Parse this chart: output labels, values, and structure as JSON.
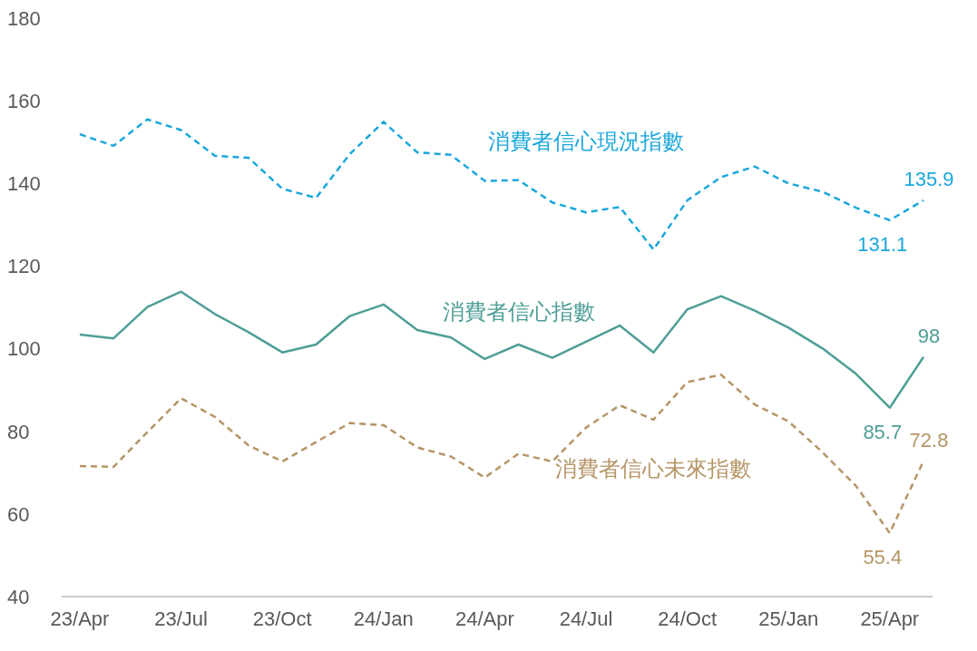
{
  "chart_data": {
    "type": "line",
    "categories": [
      "23/Apr",
      null,
      null,
      "23/Jul",
      null,
      null,
      "23/Oct",
      null,
      null,
      "24/Jan",
      null,
      null,
      "24/Apr",
      null,
      null,
      "24/Jul",
      null,
      null,
      "24/Oct",
      null,
      null,
      "25/Jan",
      null,
      null,
      "25/Apr",
      null
    ],
    "ylim": [
      40,
      180
    ],
    "yticks": [
      40,
      60,
      80,
      100,
      120,
      140,
      160,
      180
    ],
    "series": [
      {
        "name": "消費者信心現況指數",
        "color": "#1aa7dc",
        "line_style": "dashed",
        "values": [
          151.9,
          149.1,
          155.5,
          152.9,
          146.7,
          146.2,
          138.7,
          136.5,
          147.1,
          154.9,
          147.5,
          146.9,
          140.6,
          140.8,
          135.4,
          133.0,
          134.3,
          124.0,
          135.9,
          141.5,
          144.1,
          140.0,
          138.0,
          134.1,
          131.1,
          135.9
        ],
        "value_labels": [
          null,
          null,
          null,
          null,
          null,
          null,
          null,
          null,
          null,
          null,
          null,
          null,
          null,
          null,
          null,
          null,
          null,
          null,
          null,
          null,
          null,
          null,
          null,
          null,
          "131.1",
          "135.9"
        ]
      },
      {
        "name": "消費者信心指數",
        "color": "#4e9e97",
        "line_style": "solid",
        "values": [
          103.4,
          102.5,
          110.1,
          113.8,
          108.4,
          104.0,
          99.1,
          101.0,
          107.9,
          110.7,
          104.5,
          102.7,
          97.5,
          101.0,
          97.8,
          101.7,
          105.6,
          99.1,
          109.5,
          112.7,
          109.2,
          105.1,
          100.1,
          93.9,
          85.7,
          98
        ],
        "value_labels": [
          null,
          null,
          null,
          null,
          null,
          null,
          null,
          null,
          null,
          null,
          null,
          null,
          null,
          null,
          null,
          null,
          null,
          null,
          null,
          null,
          null,
          null,
          null,
          null,
          "85.7",
          "98"
        ]
      },
      {
        "name": "消費者信心未來指數",
        "color": "#b59566",
        "line_style": "dashed",
        "values": [
          71.6,
          71.4,
          79.8,
          88.0,
          83.5,
          76.6,
          72.7,
          77.4,
          82.0,
          81.5,
          76.1,
          73.9,
          68.8,
          74.6,
          72.7,
          80.9,
          86.3,
          82.8,
          91.9,
          93.7,
          86.5,
          82.4,
          75.0,
          66.8,
          55.4,
          72.8
        ],
        "value_labels": [
          null,
          null,
          null,
          null,
          null,
          null,
          null,
          null,
          null,
          null,
          null,
          null,
          null,
          null,
          null,
          null,
          null,
          null,
          null,
          null,
          null,
          null,
          null,
          null,
          "55.4",
          "72.8"
        ]
      }
    ]
  }
}
